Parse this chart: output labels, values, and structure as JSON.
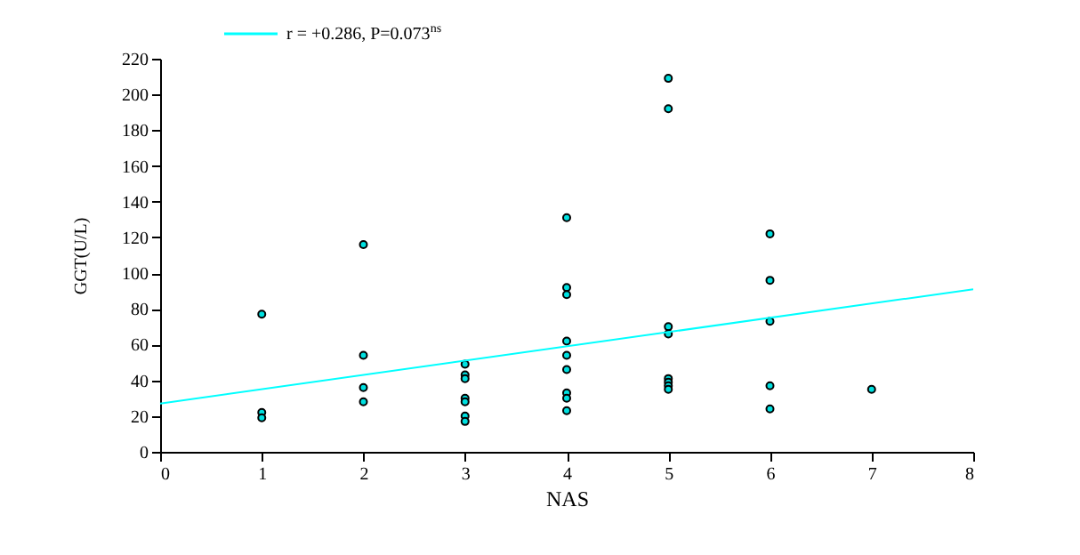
{
  "chart_data": {
    "type": "scatter",
    "xlabel": "NAS",
    "ylabel": "GGT(U/L)",
    "xlim": [
      0,
      8
    ],
    "xticks": [
      0,
      1,
      2,
      3,
      4,
      5,
      6,
      7,
      8
    ],
    "ylim": [
      0,
      220
    ],
    "yticks": [
      0,
      20,
      40,
      60,
      80,
      100,
      120,
      140,
      160,
      180,
      200,
      220
    ],
    "legend": "top",
    "series": [
      {
        "type": "scatter",
        "marker": "circle",
        "color": "#00e0e0",
        "x": [
          1,
          1,
          1,
          2,
          2,
          2,
          2,
          3,
          3,
          3,
          3,
          3,
          3,
          3,
          4,
          4,
          4,
          4,
          4,
          4,
          4,
          4,
          4,
          5,
          5,
          5,
          5,
          5,
          5,
          5,
          5,
          6,
          6,
          6,
          6,
          6,
          7
        ],
        "values": [
          77,
          22,
          19,
          116,
          54,
          36,
          28,
          49,
          43,
          41,
          30,
          28,
          20,
          17,
          131,
          92,
          88,
          62,
          54,
          46,
          33,
          30,
          23,
          209,
          192,
          70,
          66,
          41,
          39,
          37,
          35,
          122,
          96,
          73,
          37,
          24,
          35
        ]
      },
      {
        "type": "line",
        "name": "r = +0.286, P=0.073$^{ns}$",
        "color": "#00ffff",
        "x": [
          0,
          8
        ],
        "values": [
          27,
          91
        ]
      }
    ]
  }
}
